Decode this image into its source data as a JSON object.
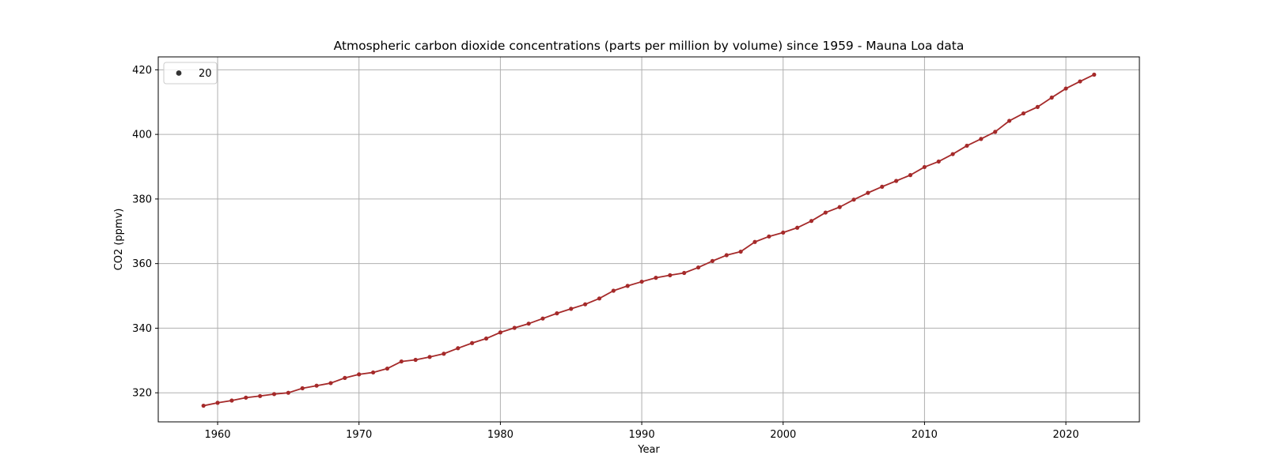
{
  "chart_data": {
    "type": "line",
    "title": "Atmospheric carbon dioxide concentrations (parts per million by volume) since 1959 - Mauna Loa data",
    "xlabel": "Year",
    "ylabel": "CO2 (ppmv)",
    "xlim": [
      1955.8,
      2025.2
    ],
    "ylim": [
      311,
      424
    ],
    "xticks": [
      1960,
      1970,
      1980,
      1990,
      2000,
      2010,
      2020
    ],
    "yticks": [
      320,
      340,
      360,
      380,
      400,
      420
    ],
    "grid": true,
    "legend_position": "top-left",
    "legend_label": "20",
    "line_color": "#a52a2a",
    "marker_color": "#a52a2a",
    "x": [
      1959,
      1960,
      1961,
      1962,
      1963,
      1964,
      1965,
      1966,
      1967,
      1968,
      1969,
      1970,
      1971,
      1972,
      1973,
      1974,
      1975,
      1976,
      1977,
      1978,
      1979,
      1980,
      1981,
      1982,
      1983,
      1984,
      1985,
      1986,
      1987,
      1988,
      1989,
      1990,
      1991,
      1992,
      1993,
      1994,
      1995,
      1996,
      1997,
      1998,
      1999,
      2000,
      2001,
      2002,
      2003,
      2004,
      2005,
      2006,
      2007,
      2008,
      2009,
      2010,
      2011,
      2012,
      2013,
      2014,
      2015,
      2016,
      2017,
      2018,
      2019,
      2020,
      2021,
      2022
    ],
    "series": [
      {
        "values": [
          316.0,
          316.9,
          317.6,
          318.5,
          319.0,
          319.6,
          320.0,
          321.4,
          322.2,
          323.0,
          324.6,
          325.7,
          326.3,
          327.5,
          329.7,
          330.2,
          331.1,
          332.1,
          333.8,
          335.4,
          336.8,
          338.7,
          340.1,
          341.4,
          343.0,
          344.6,
          346.0,
          347.4,
          349.2,
          351.6,
          353.1,
          354.4,
          355.6,
          356.4,
          357.1,
          358.8,
          360.8,
          362.6,
          363.7,
          366.7,
          368.4,
          369.6,
          371.1,
          373.2,
          375.8,
          377.5,
          379.8,
          381.9,
          383.8,
          385.6,
          387.4,
          389.9,
          391.6,
          393.9,
          396.5,
          398.6,
          400.8,
          404.2,
          406.5,
          408.5,
          411.4,
          414.2,
          416.4,
          418.5
        ]
      }
    ]
  }
}
